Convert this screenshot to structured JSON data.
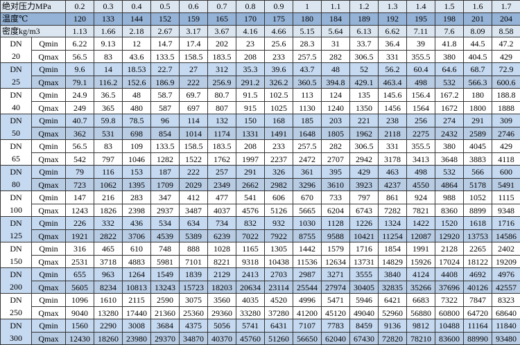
{
  "header": {
    "pressure_label": "绝对压力MPa",
    "pressure": [
      0.2,
      0.3,
      0.4,
      0.5,
      0.6,
      0.7,
      0.8,
      0.9,
      1,
      1.1,
      1.2,
      1.3,
      1.4,
      1.5,
      1.6,
      1.7
    ],
    "temperature_label": "温度℃",
    "temperature": [
      120,
      133,
      144,
      152,
      159,
      165,
      170,
      175,
      180,
      184,
      189,
      192,
      195,
      198,
      201,
      204
    ],
    "density_label": "密度kg/m3",
    "density": [
      1.13,
      1.66,
      2.18,
      2.67,
      3.17,
      3.67,
      4.16,
      4.66,
      5.15,
      5.64,
      6.13,
      6.62,
      7.11,
      7.6,
      8.09,
      8.58
    ]
  },
  "groups": [
    {
      "dn_label": "DN",
      "dn": "20",
      "qmin_label": "Qmin",
      "qmin": [
        6.22,
        9.13,
        12,
        14.7,
        17.4,
        202,
        23,
        25.6,
        28.3,
        31,
        33.7,
        36.4,
        39,
        41.8,
        44.5,
        47.2
      ],
      "qmax_label": "Qmax",
      "qmax": [
        56.5,
        83,
        43.6,
        133.5,
        158.5,
        183.5,
        208,
        233,
        257.5,
        282,
        306.5,
        331,
        355.5,
        380,
        404.5,
        429
      ]
    },
    {
      "dn_label": "DN",
      "dn": "25",
      "qmin_label": "Qmin",
      "qmin": [
        9.6,
        14,
        18.53,
        22.7,
        27,
        312,
        35.3,
        39.6,
        43.7,
        48,
        52,
        56.2,
        60.4,
        64.6,
        68.7,
        72.9
      ],
      "qmax_label": "Qmax",
      "qmax": [
        79.1,
        116.2,
        152.6,
        186.9,
        222,
        256.9,
        291.2,
        326.2,
        360.5,
        394.8,
        429.1,
        463.4,
        498,
        532,
        566.3,
        600.6
      ]
    },
    {
      "dn_label": "DN",
      "dn": "40",
      "qmin_label": "Qmin",
      "qmin": [
        24.9,
        36.5,
        48,
        58.7,
        69.7,
        80.7,
        91.5,
        102.5,
        113,
        124,
        135,
        145.6,
        156.4,
        167.2,
        180,
        188.8
      ],
      "qmax_label": "Qmax",
      "qmax": [
        249,
        365,
        480,
        587,
        697,
        807,
        915,
        1025,
        1130,
        1240,
        1350,
        1456,
        1564,
        1672,
        1800,
        1888
      ]
    },
    {
      "dn_label": "DN",
      "dn": "50",
      "qmin_label": "Qmin",
      "qmin": [
        40.7,
        59.8,
        78.5,
        96,
        114,
        132,
        150,
        168,
        185,
        203,
        221,
        238,
        256,
        274,
        291,
        309
      ],
      "qmax_label": "Qmax",
      "qmax": [
        362,
        531,
        698,
        854,
        1014,
        1174,
        1331,
        1491,
        1648,
        1805,
        1962,
        2118,
        2275,
        2432,
        2589,
        2746
      ]
    },
    {
      "dn_label": "DN",
      "dn": "65",
      "qmin_label": "Qmin",
      "qmin": [
        56.5,
        83,
        109,
        133.5,
        158.5,
        183.5,
        208,
        233,
        257.5,
        282,
        306.5,
        331,
        355.5,
        380,
        4045,
        429
      ],
      "qmax_label": "Qmax",
      "qmax": [
        542,
        797,
        1046,
        1282,
        1522,
        1762,
        1997,
        2237,
        2472,
        2707,
        2942,
        3178,
        3413,
        3648,
        3883,
        4118
      ]
    },
    {
      "dn_label": "DN",
      "dn": "80",
      "qmin_label": "Qmin",
      "qmin": [
        79,
        116,
        153,
        187,
        222,
        257,
        291,
        326,
        361,
        395,
        429,
        463,
        498,
        532,
        566,
        600
      ],
      "qmax_label": "Qmax",
      "qmax": [
        723,
        1062,
        1395,
        1709,
        2029,
        2349,
        2662,
        2982,
        3296,
        3610,
        3923,
        4237,
        4550,
        4864,
        5178,
        5491
      ]
    },
    {
      "dn_label": "DN",
      "dn": "100",
      "qmin_label": "Qmin",
      "qmin": [
        147,
        216,
        283,
        347,
        412,
        477,
        541,
        606,
        670,
        733,
        797,
        861,
        924,
        988,
        1052,
        1115
      ],
      "qmax_label": "Qmax",
      "qmax": [
        1243,
        1826,
        2398,
        2937,
        3487,
        4037,
        4576,
        5126,
        5665,
        6204,
        6743,
        7282,
        7821,
        8360,
        8899,
        9348
      ]
    },
    {
      "dn_label": "DN",
      "dn": "125",
      "qmin_label": "Qmin",
      "qmin": [
        226,
        332,
        436,
        534,
        634,
        734,
        832,
        932,
        1030,
        1128,
        1226,
        1324,
        1422,
        1520,
        1618,
        1716
      ],
      "qmax_label": "Qmax",
      "qmax": [
        1921,
        2822,
        3706,
        4539,
        5389,
        6239,
        7022,
        7922,
        8755,
        9588,
        10421,
        11254,
        12087,
        12920,
        13753,
        14586
      ]
    },
    {
      "dn_label": "DN",
      "dn": "150",
      "qmin_label": "Qmin",
      "qmin": [
        316,
        465,
        610,
        748,
        888,
        1028,
        1165,
        1305,
        1442,
        1579,
        1716,
        1854,
        1991,
        2128,
        2265,
        2402
      ],
      "qmax_label": "Qmax",
      "qmax": [
        2531,
        3718,
        4883,
        5981,
        7101,
        8221,
        9318,
        10438,
        11536,
        12634,
        13731,
        14829,
        15926,
        17024,
        18122,
        19209
      ]
    },
    {
      "dn_label": "DN",
      "dn": "200",
      "qmin_label": "Qmin",
      "qmin": [
        655,
        963,
        1264,
        1549,
        1839,
        2129,
        2413,
        2703,
        2987,
        3271,
        3555,
        3840,
        4124,
        4408,
        4692,
        4976
      ],
      "qmax_label": "Qmax",
      "qmax": [
        5605,
        8234,
        10813,
        13243,
        15723,
        18203,
        20634,
        23114,
        25544,
        27974,
        30405,
        32835,
        35266,
        37696,
        40126,
        42557
      ]
    },
    {
      "dn_label": "DN",
      "dn": "250",
      "qmin_label": "Qmin",
      "qmin": [
        1096,
        1610,
        2115,
        2590,
        3075,
        3560,
        4035,
        4520,
        4996,
        5471,
        5946,
        6421,
        6683,
        7322,
        7847,
        8323
      ],
      "qmax_label": "Qmax",
      "qmax": [
        9040,
        13280,
        17440,
        21360,
        25360,
        29360,
        33280,
        37280,
        41200,
        45120,
        49040,
        52960,
        56880,
        60800,
        64720,
        68640
      ]
    },
    {
      "dn_label": "DN",
      "dn": "300",
      "qmin_label": "Qmin",
      "qmin": [
        1560,
        2290,
        3008,
        3684,
        4375,
        5056,
        5741,
        6431,
        7107,
        7783,
        8459,
        9136,
        9812,
        10488,
        11164,
        11840
      ],
      "qmax_label": "Qmax",
      "qmax": [
        12430,
        18260,
        23980,
        29370,
        34870,
        40370,
        45760,
        51260,
        56650,
        62040,
        67430,
        72820,
        78210,
        83600,
        88990,
        93480
      ]
    }
  ]
}
